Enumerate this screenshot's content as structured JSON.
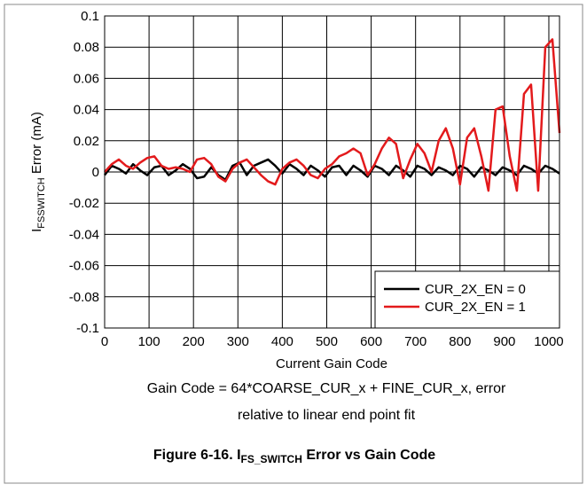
{
  "chart_data": {
    "type": "line",
    "y_label": {
      "main": "I",
      "sub": "FSSWITCH",
      "rest": " Error (mA)"
    },
    "x_label": "Current Gain Code",
    "caption": [
      "Gain Code = 64*COARSE_CUR_x + FINE_CUR_x, error",
      "relative to linear end point fit"
    ],
    "title": {
      "main": "Figure 6-16. I",
      "sub": "FS_SWITCH",
      "rest": " Error vs Gain Code"
    },
    "xlim": [
      0,
      1024
    ],
    "ylim": [
      -0.1,
      0.1
    ],
    "xticks": [
      0,
      100,
      200,
      300,
      400,
      500,
      600,
      700,
      800,
      900,
      1000
    ],
    "yticks": [
      0.1,
      0.08,
      0.06,
      0.04,
      0.02,
      0,
      -0.02,
      -0.04,
      -0.06,
      -0.08,
      -0.1
    ],
    "grid": true,
    "legend": "lower right",
    "x": [
      0,
      16,
      32,
      48,
      64,
      80,
      96,
      112,
      128,
      144,
      160,
      176,
      192,
      208,
      224,
      240,
      256,
      272,
      288,
      304,
      320,
      336,
      352,
      368,
      384,
      400,
      416,
      432,
      448,
      464,
      480,
      496,
      512,
      528,
      544,
      560,
      576,
      592,
      608,
      624,
      640,
      656,
      672,
      688,
      704,
      720,
      736,
      752,
      768,
      784,
      800,
      816,
      832,
      848,
      864,
      880,
      896,
      912,
      928,
      944,
      960,
      976,
      992,
      1008,
      1024
    ],
    "series": [
      {
        "name": "CUR_2X_EN = 0",
        "color": "#000000",
        "values": [
          -0.002,
          0.004,
          0.002,
          -0.001,
          0.005,
          0.001,
          -0.002,
          0.003,
          0.004,
          -0.002,
          0.001,
          0.005,
          0.002,
          -0.004,
          -0.003,
          0.003,
          -0.002,
          -0.005,
          0.004,
          0.006,
          -0.002,
          0.004,
          0.006,
          0.008,
          0.004,
          -0.001,
          0.005,
          0.002,
          -0.002,
          0.004,
          0.001,
          -0.003,
          0.003,
          0.004,
          -0.002,
          0.004,
          0.001,
          -0.003,
          0.004,
          0.002,
          -0.002,
          0.004,
          0.001,
          -0.003,
          0.004,
          0.002,
          -0.002,
          0.003,
          0.001,
          -0.002,
          0.004,
          0.002,
          -0.003,
          0.003,
          0.001,
          -0.002,
          0.003,
          0.001,
          -0.002,
          0.004,
          0.002,
          -0.001,
          0.004,
          0.002,
          -0.001
        ]
      },
      {
        "name": "CUR_2X_EN = 1",
        "color": "#e31a1c",
        "values": [
          0,
          0.005,
          0.008,
          0.004,
          0.002,
          0.006,
          0.009,
          0.01,
          0.004,
          0.002,
          0.003,
          0.002,
          0,
          0.008,
          0.009,
          0.005,
          -0.003,
          -0.006,
          0.002,
          0.006,
          0.008,
          0.003,
          -0.002,
          -0.006,
          -0.008,
          0.002,
          0.006,
          0.008,
          0.004,
          -0.002,
          -0.004,
          0.002,
          0.005,
          0.01,
          0.012,
          0.015,
          0.012,
          -0.002,
          0.005,
          0.015,
          0.022,
          0.018,
          -0.004,
          0.008,
          0.018,
          0.012,
          0,
          0.02,
          0.028,
          0.015,
          -0.008,
          0.022,
          0.028,
          0.01,
          -0.012,
          0.04,
          0.042,
          0.01,
          -0.012,
          0.05,
          0.056,
          -0.012,
          0.08,
          0.085,
          0.025
        ]
      }
    ]
  }
}
